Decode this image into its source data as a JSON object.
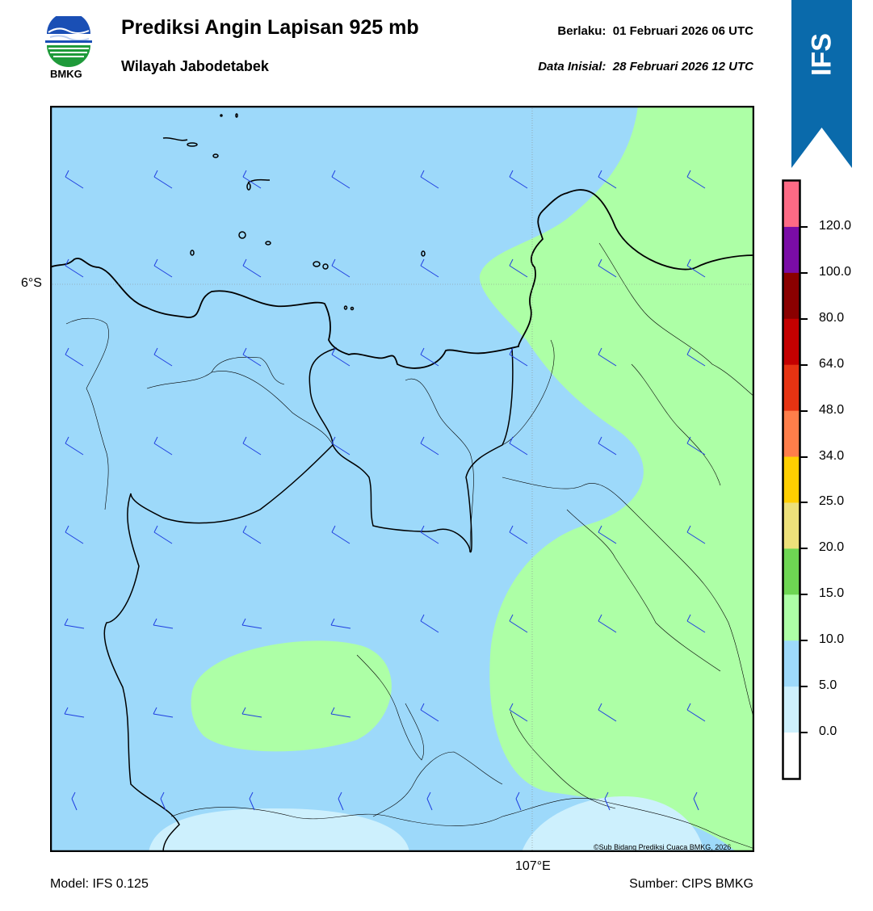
{
  "header": {
    "logo_text": "BMKG",
    "title": "Prediksi Angin Lapisan 925 mb",
    "subtitle": "Wilayah Jabodetabek",
    "valid_label": "Berlaku:",
    "valid_value": "01 Februari 2026 06 UTC",
    "init_label": "Data Inisial:",
    "init_value": "28 Februari 2026 12 UTC"
  },
  "ribbon": {
    "text": "IFS",
    "color": "#0a6aab"
  },
  "map": {
    "lat_label": "6°S",
    "lon_label": "107°E",
    "copyright": "©Sub Bidang Prediksi Cuaca BMKG, 2026",
    "colors": {
      "band_5_10": "#9dd9fa",
      "band_10_15": "#adffa6",
      "band_0_5": "#cdf0fd",
      "coast": "#000000",
      "barb": "#1f3fe0"
    }
  },
  "colorbar": {
    "ticks": [
      "120.0",
      "100.0",
      "80.0",
      "64.0",
      "48.0",
      "34.0",
      "25.0",
      "20.0",
      "15.0",
      "10.0",
      "5.0",
      "0.0"
    ],
    "colors": [
      "#fe6a85",
      "#7a0ca6",
      "#8a0000",
      "#c40000",
      "#e63312",
      "#ff7e4a",
      "#ffcf00",
      "#ede17a",
      "#6ed653",
      "#adffa6",
      "#9dd9fa",
      "#cdf0fd",
      "#ffffff"
    ]
  },
  "footer": {
    "model": "Model: IFS 0.125",
    "source": "Sumber: CIPS BMKG"
  }
}
